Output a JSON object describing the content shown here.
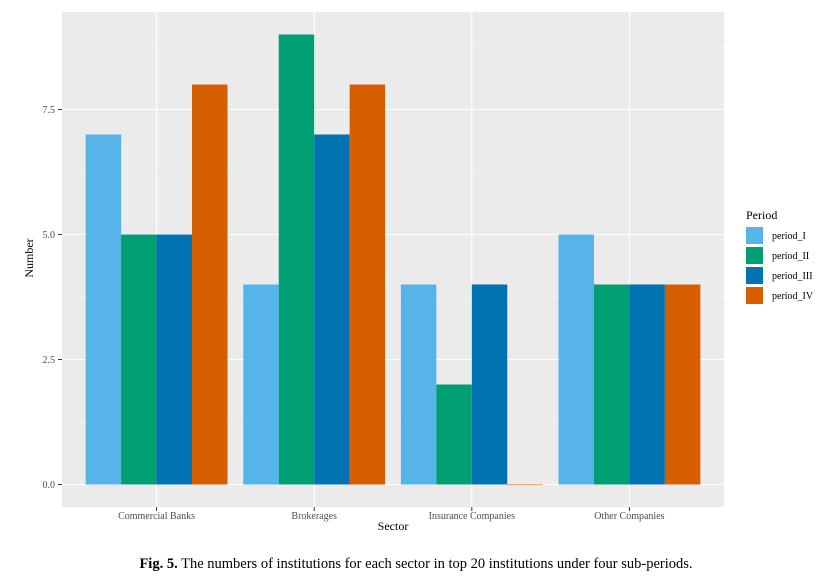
{
  "chart_data": {
    "type": "bar",
    "categories": [
      "Commercial Banks",
      "Brokerages",
      "Insurance Companies",
      "Other Companies"
    ],
    "series": [
      {
        "name": "period_I",
        "color": "#56B4E9",
        "values": [
          7,
          4,
          4,
          5
        ]
      },
      {
        "name": "period_II",
        "color": "#009E73",
        "values": [
          5,
          9,
          2,
          4
        ]
      },
      {
        "name": "period_III",
        "color": "#0072B2",
        "values": [
          5,
          7,
          4,
          4
        ]
      },
      {
        "name": "period_IV",
        "color": "#D55E00",
        "values": [
          8,
          8,
          0,
          4
        ]
      }
    ],
    "xlabel": "Sector",
    "ylabel": "Number",
    "ylim": [
      -0.45,
      9.45
    ],
    "yticks": [
      0,
      2.5,
      5,
      7.5
    ],
    "ytick_labels": [
      "0.0",
      "2.5",
      "5.0",
      "7.5"
    ],
    "legend_title": "Period",
    "legend_position": "right",
    "grid": true,
    "panel_color": "#EBEBEB"
  },
  "caption": {
    "label": "Fig. 5.",
    "text": "The numbers of institutions for each sector in top 20 institutions under four sub-periods."
  }
}
